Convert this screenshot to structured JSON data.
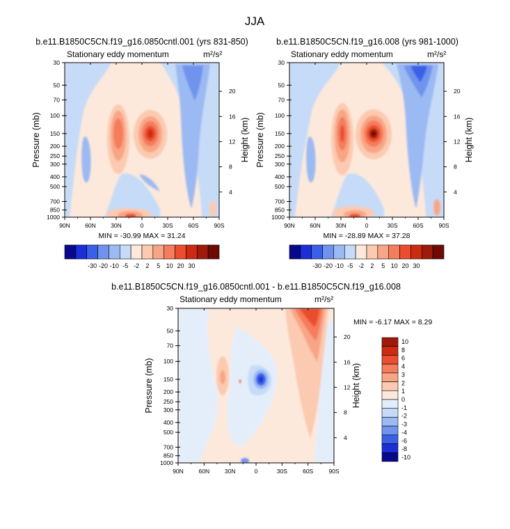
{
  "figure_title": "JJA",
  "pressure_ticks": [
    "30",
    "50",
    "70",
    "100",
    "150",
    "200",
    "250",
    "300",
    "400",
    "500",
    "700",
    "850",
    "1000"
  ],
  "lat_ticks": [
    "90N",
    "60N",
    "30N",
    "0",
    "30S",
    "60S",
    "90S"
  ],
  "height_ticks": [
    "20",
    "16",
    "12",
    "8",
    "4"
  ],
  "y_label": "Pressure (mb)",
  "right_label": "Height (km)",
  "colors": {
    "full_palette": [
      "#08088e",
      "#1a2fd6",
      "#3a60e8",
      "#6f93ee",
      "#9bb9f2",
      "#c6dbf7",
      "#fde9dc",
      "#fbcab0",
      "#f8a586",
      "#f57c5c",
      "#ea4e2e",
      "#cc2b11",
      "#9f1a0a",
      "#6e0a06"
    ],
    "diff_palette": [
      "#08088e",
      "#1a2fd6",
      "#3a60e8",
      "#6f93ee",
      "#9bb9f2",
      "#c6dbf7",
      "#e4eefb",
      "#fde9dc",
      "#fbcab0",
      "#f8a586",
      "#f57c5c",
      "#ea4e2e",
      "#cc2b11",
      "#9f1a0a"
    ]
  },
  "chart_data": [
    {
      "type": "heatmap",
      "title": "b.e11.B1850C5CN.f19_g16.0850cntl.001 (yrs 831-850)",
      "subtitle_left": "Stationary eddy momentum",
      "units": "m²/s²",
      "x": [
        "90N",
        "60N",
        "30N",
        "0",
        "30S",
        "60S",
        "90S"
      ],
      "y_pressure": [
        30,
        50,
        70,
        100,
        150,
        200,
        250,
        300,
        400,
        500,
        700,
        850,
        1000
      ],
      "stats": "MIN = -30.99  MAX =  31.24",
      "min": -30.99,
      "max": 31.24,
      "colorbar_labels": [
        "-30",
        "-20",
        "-10",
        "-5",
        "-2",
        "2",
        "5",
        "10",
        "20",
        "30"
      ],
      "colorbar_orientation": "horizontal"
    },
    {
      "type": "heatmap",
      "title": "b.e11.B1850C5CN.f19_g16.008 (yrs 981-1000)",
      "subtitle_left": "Stationary eddy momentum",
      "units": "m²/s²",
      "x": [
        "90N",
        "60N",
        "30N",
        "0",
        "30S",
        "60S",
        "90S"
      ],
      "y_pressure": [
        30,
        50,
        70,
        100,
        150,
        200,
        250,
        300,
        400,
        500,
        700,
        850,
        1000
      ],
      "stats": "MIN = -28.89  MAX =  37.28",
      "min": -28.89,
      "max": 37.28,
      "colorbar_labels": [
        "-30",
        "-20",
        "-10",
        "-5",
        "-2",
        "2",
        "5",
        "10",
        "20",
        "30"
      ],
      "colorbar_orientation": "horizontal"
    },
    {
      "type": "heatmap",
      "title": "b.e11.B1850C5CN.f19_g16.0850cntl.001 - b.e11.B1850C5CN.f19_g16.008",
      "subtitle_left": "Stationary eddy momentum",
      "units": "m²/s²",
      "x": [
        "90N",
        "60N",
        "30N",
        "0",
        "30S",
        "60S",
        "90S"
      ],
      "y_pressure": [
        30,
        50,
        70,
        100,
        150,
        200,
        250,
        300,
        400,
        500,
        700,
        850,
        1000
      ],
      "stats": "MIN =  -6.17  MAX =   8.29",
      "min": -6.17,
      "max": 8.29,
      "colorbar_labels": [
        "10",
        "8",
        "6",
        "4",
        "3",
        "2",
        "1",
        "0",
        "-1",
        "-2",
        "-3",
        "-4",
        "-6",
        "-8",
        "-10"
      ],
      "colorbar_orientation": "vertical"
    }
  ]
}
